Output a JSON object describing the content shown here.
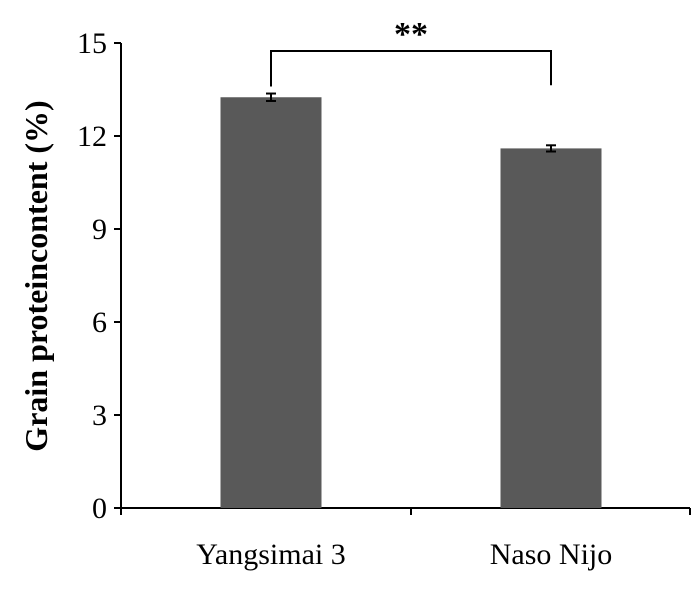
{
  "chart_data": {
    "type": "bar",
    "categories": [
      "Yangsimai 3",
      "Naso Nijo"
    ],
    "values": [
      13.25,
      11.6
    ],
    "errors": [
      0.12,
      0.1
    ],
    "title": "",
    "xlabel": "",
    "ylabel": "Grain proteincontent (%)",
    "ylim": [
      0,
      15
    ],
    "yticks": [
      0,
      3,
      6,
      9,
      12,
      15
    ],
    "ytick_labels": [
      "0",
      "3",
      "6",
      "9",
      "12",
      "15"
    ],
    "grid": false,
    "bar_color": "#595959",
    "significance": {
      "label": "**",
      "between": [
        0,
        1
      ]
    }
  }
}
